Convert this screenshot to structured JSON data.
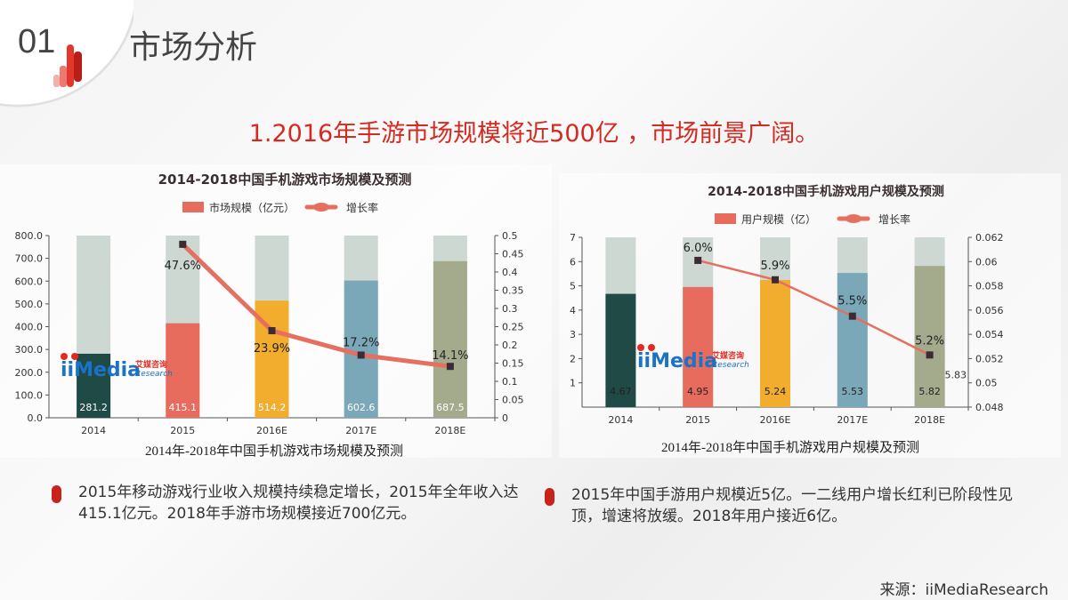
{
  "header": {
    "section_number": "01",
    "section_title": "市场分析"
  },
  "headline": "1.2016年手游市场规模将近500亿 ，市场前景广阔。",
  "colors": {
    "accent": "#d42a20",
    "bar_bg": "#cdd8d3",
    "line": "#e57060",
    "marker": "#3b2b33",
    "bars": [
      "#1f4a45",
      "#e86c5d",
      "#f2ac2e",
      "#7aa8b8",
      "#a3ab8c"
    ]
  },
  "logo": {
    "text": "iiMedia",
    "cn": "艾媒咨询",
    "en": "Research"
  },
  "chart_data": [
    {
      "type": "bar+line",
      "title": "2014-2018中国手机游戏市场规模及预测",
      "legend": {
        "bar": "市场规模（亿元）",
        "line": "增长率"
      },
      "categories": [
        "2014",
        "2015",
        "2016E",
        "2017E",
        "2018E"
      ],
      "bar_values": [
        281.2,
        415.1,
        514.2,
        602.6,
        687.5
      ],
      "bar_labels": [
        "281.2",
        "415.1",
        "514.2",
        "602.6",
        "687.5"
      ],
      "line_values": [
        null,
        0.476,
        0.239,
        0.172,
        0.141
      ],
      "line_labels": [
        "",
        "47.6%",
        "23.9%",
        "17.2%",
        "14.1%"
      ],
      "ylim": [
        0,
        800
      ],
      "y_ticks": [
        "0.0",
        "100.0",
        "200.0",
        "300.0",
        "400.0",
        "500.0",
        "600.0",
        "700.0",
        "800.0"
      ],
      "y2lim": [
        0,
        0.5
      ],
      "y2_ticks": [
        "0",
        "0.05",
        "0.1",
        "0.15",
        "0.2",
        "0.25",
        "0.3",
        "0.35",
        "0.4",
        "0.45",
        "0.5"
      ],
      "caption": "2014年-2018年中国手机游戏市场规模及预测"
    },
    {
      "type": "bar+line",
      "title": "2014-2018中国手机游戏用户规模及预测",
      "legend": {
        "bar": "用户规模（亿）",
        "line": "增长率"
      },
      "categories": [
        "2014",
        "2015",
        "2016E",
        "2017E",
        "2018E"
      ],
      "bar_values": [
        4.67,
        4.95,
        5.24,
        5.53,
        5.82
      ],
      "bar_labels": [
        "4.67",
        "4.95",
        "5.24",
        "5.53",
        "5.82"
      ],
      "line_values": [
        null,
        0.0601,
        0.0585,
        0.0555,
        0.0523
      ],
      "line_labels": [
        "",
        "6.0%",
        "5.9%",
        "5.5%",
        "5.2%"
      ],
      "extra_label": "5.83",
      "ylim": [
        0,
        7
      ],
      "y_ticks": [
        "1",
        "2",
        "3",
        "4",
        "5",
        "6",
        "7"
      ],
      "y2lim": [
        0.048,
        0.062
      ],
      "y2_ticks": [
        "0.048",
        "0.05",
        "0.052",
        "0.054",
        "0.056",
        "0.058",
        "0.06",
        "0.062"
      ],
      "caption": "2014年-2018年中国手机游戏用户规模及预测"
    }
  ],
  "bullets": [
    "2015年移动游戏行业收入规模持续稳定增长，2015年全年收入达415.1亿元。2018年手游市场规模接近700亿元。",
    "2015年中国手游用户规模近5亿。一二线用户增长红利已阶段性见顶，增速将放缓。2018年用户接近6亿。"
  ],
  "source": "来源：iiMediaResearch"
}
